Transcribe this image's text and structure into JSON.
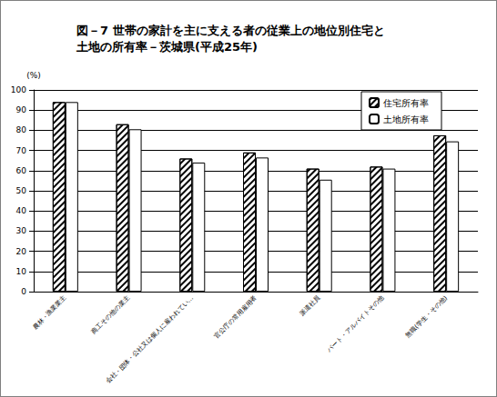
{
  "chart_data": {
    "type": "bar",
    "title": "図－7 世帯の家計を主に支える者の従業上の地位別住宅と\n土地の所有率－茨城県(平成25年)",
    "y_label": "(%)",
    "categories": [
      "農林・漁業業主",
      "商工その他の業主",
      "会社・団体・公社又は個人に雇われてい…",
      "官公庁の常用雇用者",
      "派遣社員",
      "パート・アルバイトその他",
      "無職(学生・その他)"
    ],
    "series": [
      {
        "name": "住宅所有率",
        "color": "#ffffff",
        "values": [
          94,
          83,
          66,
          69,
          61,
          62,
          77.5
        ]
      },
      {
        "name": "土地所有率",
        "color": "#ffffff",
        "values": [
          94,
          80.5,
          64,
          66.5,
          55.5,
          61,
          74.5
        ]
      }
    ],
    "ylim": [
      0,
      100
    ],
    "yticks": [
      0,
      10,
      20,
      30,
      40,
      50,
      60,
      70,
      80,
      90,
      100
    ],
    "grid": true,
    "legend": "upper right"
  }
}
